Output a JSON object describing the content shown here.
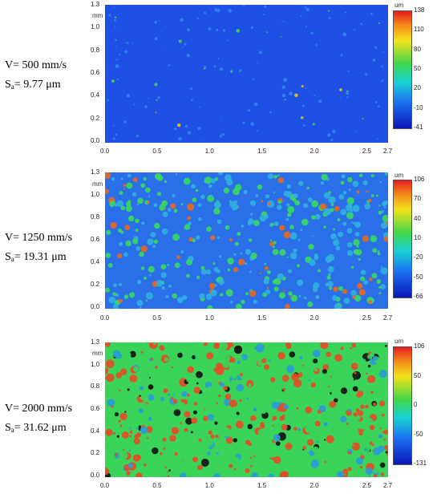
{
  "panels": [
    {
      "velocity_label": "V= 500 mm/s",
      "sa_prefix": "S",
      "sa_sub": "a",
      "sa_value": "= 9.77 μm",
      "y_unit": "mm",
      "cbar_unit": "um",
      "cbar_ticks": [
        "138",
        "110",
        "80",
        "50",
        "20",
        "-10",
        "-41"
      ],
      "x_ticks": [
        "0.0",
        "0.5",
        "1.0",
        "1.5",
        "2.0",
        "2.5",
        "2.7"
      ],
      "y_ticks": [
        "1.3",
        "1.0",
        "0.8",
        "0.6",
        "0.4",
        "0.2",
        "0.0"
      ],
      "colors": [
        "#1e50e6",
        "#2f6ef0",
        "#2a8ae8"
      ]
    },
    {
      "velocity_label": "V= 1250 mm/s",
      "sa_prefix": "S",
      "sa_sub": "a",
      "sa_value": "= 19.31 μm",
      "y_unit": "mm",
      "cbar_unit": "um",
      "cbar_ticks": [
        "106",
        "70",
        "40",
        "10",
        "-20",
        "-50",
        "-66"
      ],
      "x_ticks": [
        "0.0",
        "0.5",
        "1.0",
        "1.5",
        "2.0",
        "2.5",
        "2.7"
      ],
      "y_ticks": [
        "1.3",
        "1.0",
        "0.8",
        "0.6",
        "0.4",
        "0.2",
        "0.0"
      ],
      "colors": [
        "#2a6ee8",
        "#2fb0e0",
        "#38d860"
      ]
    },
    {
      "velocity_label": "V= 2000 mm/s",
      "sa_prefix": "S",
      "sa_sub": "a",
      "sa_value": "= 31.62 μm",
      "y_unit": "mm",
      "cbar_unit": "um",
      "cbar_ticks": [
        "106",
        "50",
        "0",
        "-50",
        "-131"
      ],
      "x_ticks": [
        "0.0",
        "0.5",
        "1.0",
        "1.5",
        "2.0",
        "2.5",
        "2.7"
      ],
      "y_ticks": [
        "1.3",
        "1.0",
        "0.8",
        "0.6",
        "0.4",
        "0.2",
        "0.0"
      ],
      "colors": [
        "#3ad45a",
        "#e84a22",
        "#2a9ad8"
      ]
    }
  ]
}
